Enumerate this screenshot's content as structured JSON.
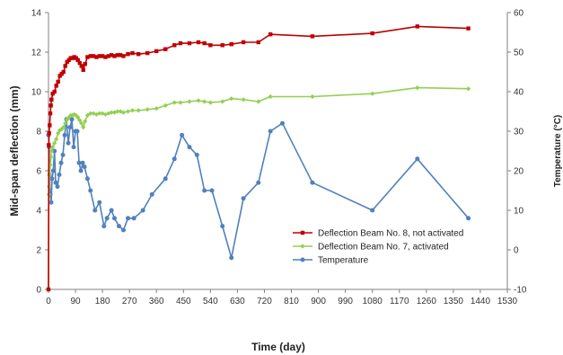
{
  "chart_data": {
    "type": "line",
    "xlabel": "Time (day)",
    "ylabel": "Mid-span deflection (mm)",
    "y2label": "Temperature (°C)",
    "xlim": [
      0,
      1530
    ],
    "ylim": [
      0,
      14
    ],
    "y2lim": [
      -10,
      60
    ],
    "xticks": [
      0,
      90,
      180,
      270,
      360,
      450,
      540,
      630,
      720,
      810,
      900,
      990,
      1080,
      1170,
      1260,
      1350,
      1440,
      1530
    ],
    "yticks": [
      0,
      2,
      4,
      6,
      8,
      10,
      12,
      14
    ],
    "y2ticks": [
      -10,
      0,
      10,
      20,
      30,
      40,
      50,
      60
    ],
    "grid": false,
    "legend_position": "lower-center",
    "series": [
      {
        "name": "Deflection Beam No. 8, not activated",
        "axis": "left",
        "color": "#c00000",
        "marker": "square",
        "points": [
          [
            0,
            0
          ],
          [
            1,
            7.3
          ],
          [
            2,
            7.9
          ],
          [
            4,
            8.3
          ],
          [
            6,
            8.9
          ],
          [
            8,
            9.3
          ],
          [
            10,
            9.6
          ],
          [
            14,
            9.9
          ],
          [
            20,
            10.0
          ],
          [
            26,
            10.3
          ],
          [
            32,
            10.5
          ],
          [
            38,
            10.8
          ],
          [
            44,
            10.9
          ],
          [
            50,
            11.0
          ],
          [
            56,
            11.3
          ],
          [
            62,
            11.5
          ],
          [
            68,
            11.6
          ],
          [
            74,
            11.7
          ],
          [
            80,
            11.7
          ],
          [
            86,
            11.75
          ],
          [
            92,
            11.7
          ],
          [
            98,
            11.6
          ],
          [
            104,
            11.45
          ],
          [
            110,
            11.3
          ],
          [
            116,
            11.1
          ],
          [
            122,
            11.4
          ],
          [
            130,
            11.75
          ],
          [
            140,
            11.8
          ],
          [
            150,
            11.8
          ],
          [
            160,
            11.75
          ],
          [
            170,
            11.8
          ],
          [
            180,
            11.8
          ],
          [
            190,
            11.75
          ],
          [
            200,
            11.8
          ],
          [
            210,
            11.85
          ],
          [
            220,
            11.8
          ],
          [
            230,
            11.85
          ],
          [
            240,
            11.85
          ],
          [
            250,
            11.8
          ],
          [
            265,
            11.9
          ],
          [
            280,
            11.95
          ],
          [
            300,
            11.9
          ],
          [
            330,
            11.95
          ],
          [
            360,
            12.05
          ],
          [
            390,
            12.15
          ],
          [
            420,
            12.35
          ],
          [
            440,
            12.45
          ],
          [
            470,
            12.45
          ],
          [
            500,
            12.5
          ],
          [
            520,
            12.45
          ],
          [
            540,
            12.35
          ],
          [
            580,
            12.35
          ],
          [
            610,
            12.4
          ],
          [
            650,
            12.5
          ],
          [
            700,
            12.5
          ],
          [
            740,
            12.9
          ],
          [
            880,
            12.8
          ],
          [
            1080,
            12.95
          ],
          [
            1230,
            13.3
          ],
          [
            1400,
            13.2
          ]
        ]
      },
      {
        "name": "Deflection Beam No. 7, activated",
        "axis": "left",
        "color": "#92d050",
        "marker": "diamond",
        "points": [
          [
            0,
            0
          ],
          [
            1,
            4.8
          ],
          [
            2,
            5.2
          ],
          [
            4,
            5.8
          ],
          [
            6,
            6.3
          ],
          [
            8,
            6.7
          ],
          [
            10,
            7.0
          ],
          [
            14,
            7.2
          ],
          [
            20,
            7.4
          ],
          [
            26,
            7.6
          ],
          [
            32,
            7.9
          ],
          [
            38,
            8.05
          ],
          [
            44,
            8.1
          ],
          [
            50,
            8.2
          ],
          [
            56,
            8.4
          ],
          [
            62,
            8.6
          ],
          [
            68,
            8.7
          ],
          [
            74,
            8.8
          ],
          [
            80,
            8.8
          ],
          [
            86,
            8.85
          ],
          [
            92,
            8.8
          ],
          [
            98,
            8.7
          ],
          [
            104,
            8.55
          ],
          [
            110,
            8.4
          ],
          [
            116,
            8.2
          ],
          [
            122,
            8.5
          ],
          [
            130,
            8.8
          ],
          [
            140,
            8.9
          ],
          [
            150,
            8.9
          ],
          [
            160,
            8.85
          ],
          [
            170,
            8.9
          ],
          [
            180,
            8.9
          ],
          [
            190,
            8.85
          ],
          [
            200,
            8.9
          ],
          [
            210,
            8.95
          ],
          [
            220,
            8.95
          ],
          [
            230,
            9.0
          ],
          [
            240,
            9.0
          ],
          [
            250,
            8.95
          ],
          [
            265,
            9.0
          ],
          [
            280,
            9.05
          ],
          [
            300,
            9.05
          ],
          [
            330,
            9.1
          ],
          [
            360,
            9.15
          ],
          [
            390,
            9.3
          ],
          [
            420,
            9.45
          ],
          [
            440,
            9.45
          ],
          [
            470,
            9.5
          ],
          [
            500,
            9.55
          ],
          [
            520,
            9.5
          ],
          [
            540,
            9.45
          ],
          [
            580,
            9.5
          ],
          [
            610,
            9.65
          ],
          [
            650,
            9.6
          ],
          [
            700,
            9.5
          ],
          [
            740,
            9.75
          ],
          [
            880,
            9.75
          ],
          [
            1080,
            9.9
          ],
          [
            1230,
            10.2
          ],
          [
            1400,
            10.15
          ]
        ]
      },
      {
        "name": "Temperature",
        "axis": "right",
        "color": "#4f81bd",
        "marker": "circle",
        "points": [
          [
            0,
            29
          ],
          [
            2,
            26
          ],
          [
            4,
            19
          ],
          [
            6,
            14
          ],
          [
            9,
            12
          ],
          [
            12,
            18
          ],
          [
            16,
            20
          ],
          [
            20,
            25
          ],
          [
            24,
            17
          ],
          [
            30,
            16
          ],
          [
            36,
            19
          ],
          [
            42,
            22
          ],
          [
            48,
            24
          ],
          [
            54,
            29
          ],
          [
            60,
            33
          ],
          [
            66,
            27
          ],
          [
            72,
            31
          ],
          [
            78,
            33
          ],
          [
            84,
            26
          ],
          [
            90,
            30
          ],
          [
            96,
            30
          ],
          [
            102,
            22
          ],
          [
            108,
            20
          ],
          [
            114,
            22
          ],
          [
            120,
            21
          ],
          [
            130,
            18
          ],
          [
            140,
            15
          ],
          [
            155,
            10
          ],
          [
            170,
            12
          ],
          [
            185,
            6
          ],
          [
            195,
            8
          ],
          [
            210,
            10
          ],
          [
            220,
            8
          ],
          [
            235,
            6
          ],
          [
            250,
            5
          ],
          [
            265,
            8
          ],
          [
            285,
            8
          ],
          [
            315,
            10
          ],
          [
            345,
            14
          ],
          [
            390,
            18
          ],
          [
            420,
            23
          ],
          [
            445,
            29
          ],
          [
            470,
            26
          ],
          [
            495,
            24
          ],
          [
            520,
            15
          ],
          [
            545,
            15
          ],
          [
            580,
            6
          ],
          [
            610,
            -2
          ],
          [
            650,
            13
          ],
          [
            700,
            17
          ],
          [
            740,
            30
          ],
          [
            780,
            32
          ],
          [
            880,
            17
          ],
          [
            1080,
            10
          ],
          [
            1230,
            23
          ],
          [
            1400,
            8
          ]
        ]
      }
    ]
  }
}
